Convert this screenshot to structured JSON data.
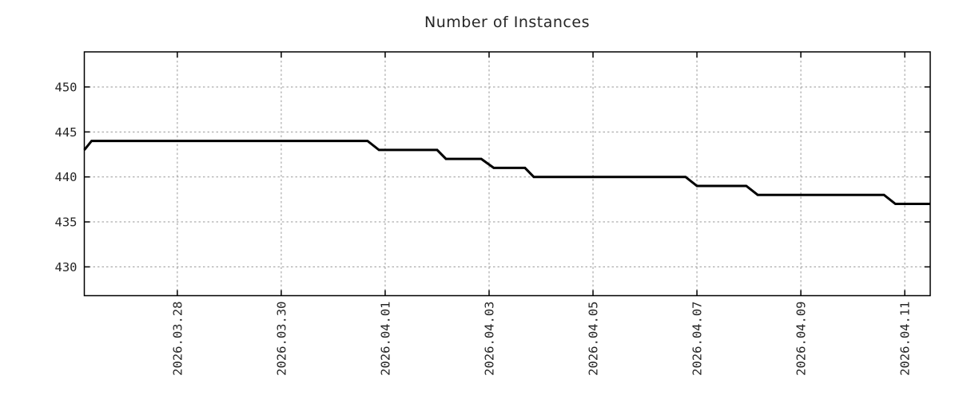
{
  "title": "Number of Instances",
  "colors": {
    "line": "#000000",
    "grid": "#9a9a9a",
    "border": "#000000",
    "text": "#262626",
    "background": "#ffffff"
  },
  "chart_data": {
    "type": "line",
    "title": "Number of Instances",
    "xlabel": "",
    "ylabel": "",
    "legend": "none",
    "grid": true,
    "x_unit": "days since 2026-03-26 00:00",
    "xlim": [
      0.21,
      16.49
    ],
    "ylim": [
      426.8,
      453.9
    ],
    "y_ticks": [
      430,
      435,
      440,
      445,
      450
    ],
    "x_ticks": [
      {
        "day": 2,
        "label": "2026.03.28"
      },
      {
        "day": 4,
        "label": "2026.03.30"
      },
      {
        "day": 6,
        "label": "2026.04.01"
      },
      {
        "day": 8,
        "label": "2026.04.03"
      },
      {
        "day": 10,
        "label": "2026.04.05"
      },
      {
        "day": 12,
        "label": "2026.04.07"
      },
      {
        "day": 14,
        "label": "2026.04.09"
      },
      {
        "day": 16,
        "label": "2026.04.11"
      }
    ],
    "series": [
      {
        "name": "instances",
        "color": "#000000",
        "points": [
          [
            0.21,
            443
          ],
          [
            0.35,
            444
          ],
          [
            5.66,
            444
          ],
          [
            5.88,
            443
          ],
          [
            7.0,
            443
          ],
          [
            7.17,
            442
          ],
          [
            7.85,
            442
          ],
          [
            8.09,
            441
          ],
          [
            8.69,
            441
          ],
          [
            8.86,
            440
          ],
          [
            11.78,
            440
          ],
          [
            12.0,
            439
          ],
          [
            12.95,
            439
          ],
          [
            13.17,
            438
          ],
          [
            15.6,
            438
          ],
          [
            15.82,
            437
          ],
          [
            16.49,
            437
          ]
        ]
      }
    ]
  }
}
